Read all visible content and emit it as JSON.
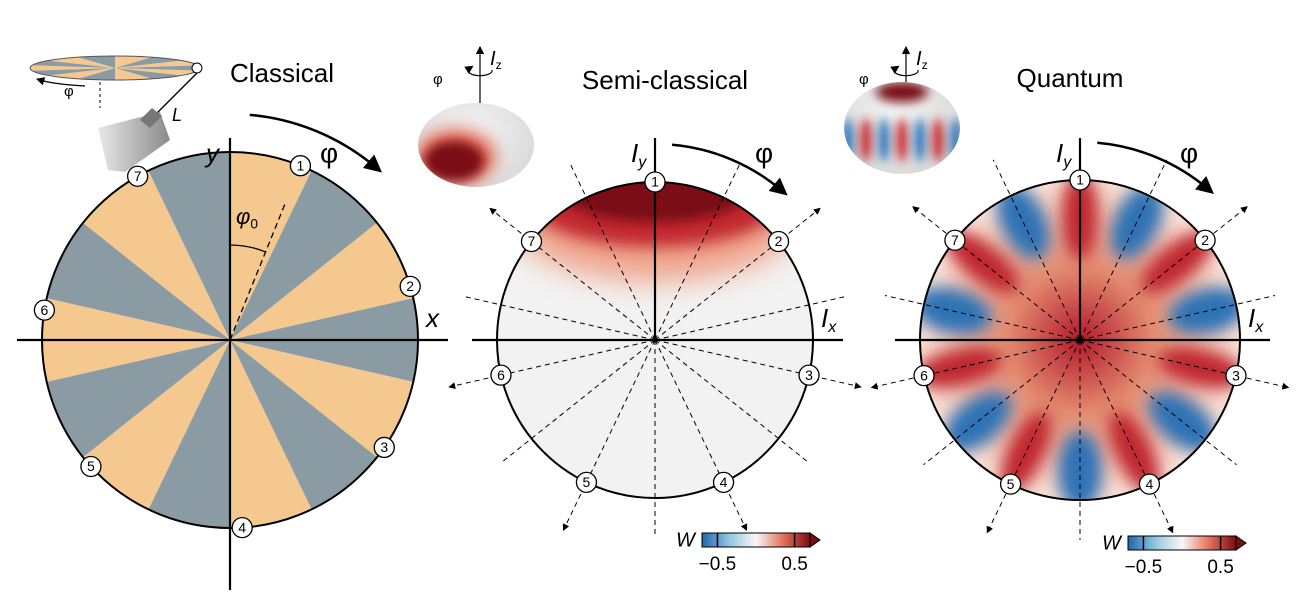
{
  "panels": [
    {
      "title": "Classical",
      "x_axis": "x",
      "y_axis": "y",
      "rotation": "φ",
      "angle": {
        "symbol": "φ",
        "subscript": "0"
      },
      "length": "L",
      "inset_rotation": "φ",
      "markers": [
        "1",
        "2",
        "3",
        "4",
        "5",
        "6",
        "7"
      ]
    },
    {
      "title": "Semi-classical",
      "x_axis": {
        "symbol": "I",
        "subscript": "x"
      },
      "y_axis": {
        "symbol": "I",
        "subscript": "y"
      },
      "rotation": "φ",
      "inset_rotation": "φ",
      "inset_axis": {
        "symbol": "I",
        "subscript": "z"
      },
      "markers": [
        "1",
        "2",
        "3",
        "4",
        "5",
        "6",
        "7"
      ],
      "colorbar": {
        "label": "W",
        "clim": [
          -0.7,
          0.7
        ],
        "ticks": [
          {
            "value": -0.5,
            "label": "−0.5"
          },
          0.5
        ]
      }
    },
    {
      "title": "Quantum",
      "x_axis": {
        "symbol": "I",
        "subscript": "x"
      },
      "y_axis": {
        "symbol": "I",
        "subscript": "y"
      },
      "rotation": "φ",
      "inset_rotation": "φ",
      "inset_axis": {
        "symbol": "I",
        "subscript": "z"
      },
      "markers": [
        "1",
        "2",
        "3",
        "4",
        "5",
        "6",
        "7"
      ],
      "colorbar": {
        "label": "W",
        "clim": [
          -0.7,
          0.7
        ],
        "ticks": [
          {
            "value": -0.5,
            "label": "−0.5"
          },
          0.5
        ]
      }
    }
  ]
}
